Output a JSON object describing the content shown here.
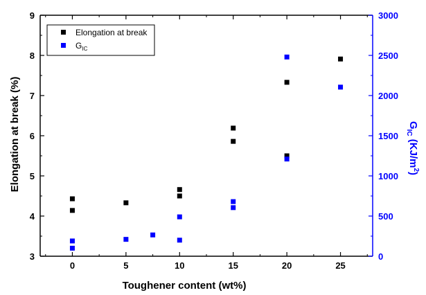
{
  "chart_data": {
    "type": "scatter",
    "xlabel": "Toughener content (wt%)",
    "ylabel_left": "Elongation at break (%)",
    "ylabel_right": {
      "main": "G",
      "sub": "IC",
      "unit": " (KJ/m",
      "sup": "2",
      "close": ")"
    },
    "xlim": [
      -3,
      28
    ],
    "ylim_left": [
      3,
      9
    ],
    "ylim_right": [
      0,
      3000
    ],
    "x_ticks": [
      0,
      5,
      10,
      15,
      20,
      25
    ],
    "y_left_ticks": [
      3,
      4,
      5,
      6,
      7,
      8,
      9
    ],
    "y_right_ticks": [
      0,
      500,
      1000,
      1500,
      2000,
      2500,
      3000
    ],
    "legend": {
      "placement": "top-left",
      "entries": [
        {
          "main": "Elongation at break",
          "sub": ""
        },
        {
          "main": "G",
          "sub": "IC"
        }
      ]
    },
    "colors": {
      "elongation": "#000000",
      "gic": "#0000ff",
      "right_axis": "#0000ff"
    },
    "series": [
      {
        "name": "Elongation at break",
        "axis": "left",
        "points": [
          {
            "x": 0,
            "y": 4.43
          },
          {
            "x": 0,
            "y": 4.14
          },
          {
            "x": 5,
            "y": 4.33
          },
          {
            "x": 10,
            "y": 4.66
          },
          {
            "x": 10,
            "y": 4.5
          },
          {
            "x": 15,
            "y": 6.19
          },
          {
            "x": 15,
            "y": 5.86
          },
          {
            "x": 20,
            "y": 7.33
          },
          {
            "x": 20,
            "y": 5.5
          },
          {
            "x": 25,
            "y": 7.91
          }
        ]
      },
      {
        "name": "GIC",
        "axis": "right",
        "points": [
          {
            "x": 0,
            "y": 190
          },
          {
            "x": 0,
            "y": 100
          },
          {
            "x": 5,
            "y": 210
          },
          {
            "x": 7.5,
            "y": 265
          },
          {
            "x": 10,
            "y": 490
          },
          {
            "x": 10,
            "y": 200
          },
          {
            "x": 15,
            "y": 680
          },
          {
            "x": 15,
            "y": 605
          },
          {
            "x": 20,
            "y": 2480
          },
          {
            "x": 20,
            "y": 1210
          },
          {
            "x": 25,
            "y": 2105
          }
        ]
      }
    ]
  }
}
